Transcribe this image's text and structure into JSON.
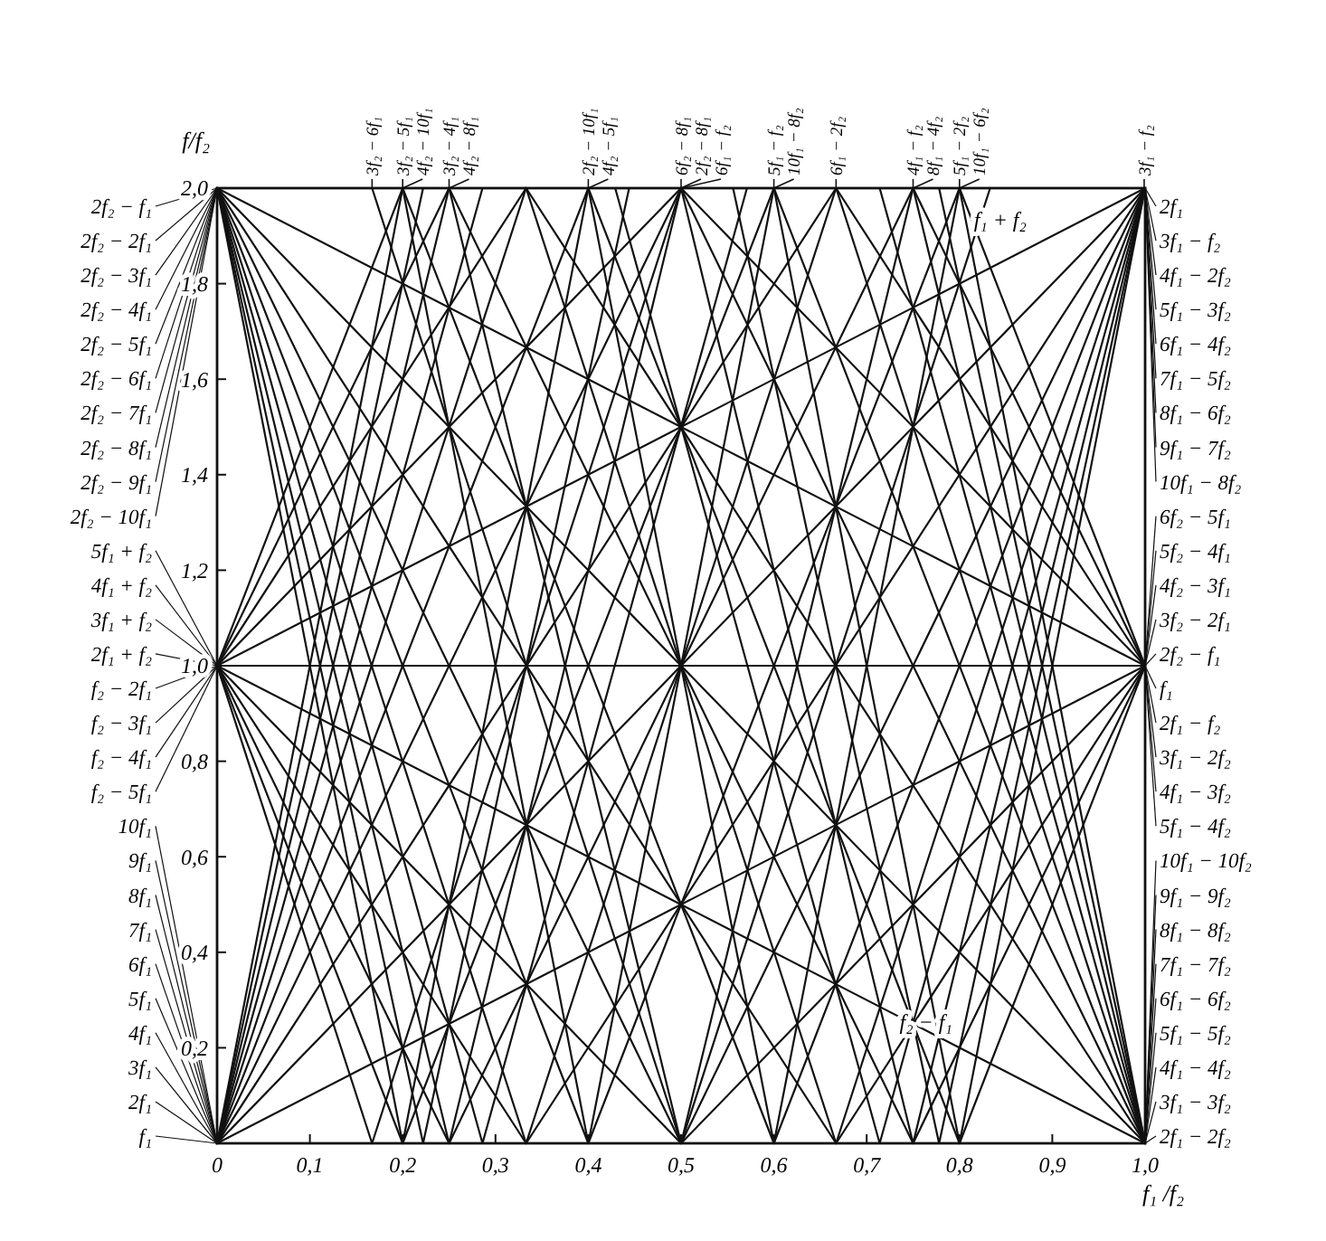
{
  "chart_data": {
    "type": "line",
    "xlabel": "f₁ /f₂",
    "ylabel": "f/f₂",
    "color": "#111111",
    "xlim": [
      0,
      1
    ],
    "ylim": [
      0,
      2
    ],
    "xticks": [
      {
        "value": 0,
        "label": "0"
      },
      {
        "value": 0.1,
        "label": "0,1"
      },
      {
        "value": 0.2,
        "label": "0,2"
      },
      {
        "value": 0.3,
        "label": "0,3"
      },
      {
        "value": 0.4,
        "label": "0,4"
      },
      {
        "value": 0.5,
        "label": "0,5"
      },
      {
        "value": 0.6,
        "label": "0,6"
      },
      {
        "value": 0.7,
        "label": "0,7"
      },
      {
        "value": 0.8,
        "label": "0,8"
      },
      {
        "value": 0.9,
        "label": "0,9"
      },
      {
        "value": 1,
        "label": "1,0"
      }
    ],
    "yticks": [
      {
        "value": 0.2,
        "label": "0,2"
      },
      {
        "value": 0.4,
        "label": "0,4"
      },
      {
        "value": 0.6,
        "label": "0,6"
      },
      {
        "value": 0.8,
        "label": "0,8"
      },
      {
        "value": 1,
        "label": "1,0"
      },
      {
        "value": 1.2,
        "label": "1,2"
      },
      {
        "value": 1.4,
        "label": "1,4"
      },
      {
        "value": 1.6,
        "label": "1,6"
      },
      {
        "value": 1.8,
        "label": "1,8"
      },
      {
        "value": 2,
        "label": "2,0"
      }
    ],
    "series": [
      {
        "x": [
          0,
          1
        ],
        "values": [
          2,
          1
        ]
      },
      {
        "x": [
          0,
          1
        ],
        "values": [
          2,
          0
        ]
      },
      {
        "x": [
          0,
          0.667,
          1
        ],
        "values": [
          2,
          0,
          1
        ]
      },
      {
        "x": [
          0,
          0.5,
          1
        ],
        "values": [
          2,
          0,
          2
        ]
      },
      {
        "x": [
          0,
          0.4,
          0.8
        ],
        "values": [
          2,
          0,
          2
        ]
      },
      {
        "x": [
          0,
          0.333,
          0.667
        ],
        "values": [
          2,
          0,
          2
        ]
      },
      {
        "x": [
          0,
          0.286,
          0.571
        ],
        "values": [
          2,
          0,
          2
        ]
      },
      {
        "x": [
          0,
          0.25,
          0.5
        ],
        "values": [
          2,
          0,
          2
        ]
      },
      {
        "x": [
          0,
          0.222,
          0.444
        ],
        "values": [
          2,
          0,
          2
        ]
      },
      {
        "x": [
          0,
          0.2,
          0.4
        ],
        "values": [
          2,
          0,
          2
        ]
      },
      {
        "x": [
          0,
          1
        ],
        "values": [
          1,
          0
        ]
      },
      {
        "x": [
          0,
          0.5,
          1
        ],
        "values": [
          1,
          0,
          1
        ]
      },
      {
        "x": [
          0,
          0.333,
          1
        ],
        "values": [
          1,
          0,
          2
        ]
      },
      {
        "x": [
          0,
          0.25,
          0.75
        ],
        "values": [
          1,
          0,
          2
        ]
      },
      {
        "x": [
          0,
          0.2,
          0.6
        ],
        "values": [
          1,
          0,
          2
        ]
      },
      {
        "x": [
          0,
          1
        ],
        "values": [
          0,
          1
        ]
      },
      {
        "x": [
          0,
          1
        ],
        "values": [
          0,
          2
        ]
      },
      {
        "x": [
          0,
          0.667
        ],
        "values": [
          0,
          2
        ]
      },
      {
        "x": [
          0,
          0.5
        ],
        "values": [
          0,
          2
        ]
      },
      {
        "x": [
          0,
          0.4
        ],
        "values": [
          0,
          2
        ]
      },
      {
        "x": [
          0,
          0.333
        ],
        "values": [
          0,
          2
        ]
      },
      {
        "x": [
          0,
          0.286
        ],
        "values": [
          0,
          2
        ]
      },
      {
        "x": [
          0,
          0.25
        ],
        "values": [
          0,
          2
        ]
      },
      {
        "x": [
          0,
          0.222
        ],
        "values": [
          0,
          2
        ]
      },
      {
        "x": [
          0,
          0.2
        ],
        "values": [
          0,
          2
        ]
      },
      {
        "x": [
          0,
          1
        ],
        "values": [
          1,
          2
        ]
      },
      {
        "x": [
          0,
          0.5
        ],
        "values": [
          1,
          2
        ]
      },
      {
        "x": [
          0,
          0.333
        ],
        "values": [
          1,
          2
        ]
      },
      {
        "x": [
          0,
          0.25
        ],
        "values": [
          1,
          2
        ]
      },
      {
        "x": [
          0,
          0.2
        ],
        "values": [
          1,
          2
        ]
      },
      {
        "x": [
          0.2,
          0.6,
          1
        ],
        "values": [
          2,
          0,
          2
        ]
      },
      {
        "x": [
          0.333,
          0.667,
          1
        ],
        "values": [
          2,
          0,
          2
        ]
      },
      {
        "x": [
          0.429,
          0.714,
          1
        ],
        "values": [
          2,
          0,
          2
        ]
      },
      {
        "x": [
          0.5,
          0.75,
          1
        ],
        "values": [
          2,
          0,
          2
        ]
      },
      {
        "x": [
          0.556,
          0.778,
          1
        ],
        "values": [
          2,
          0,
          2
        ]
      },
      {
        "x": [
          0.6,
          0.8,
          1
        ],
        "values": [
          2,
          0,
          2
        ]
      },
      {
        "x": [
          0.5,
          1
        ],
        "values": [
          2,
          1
        ]
      },
      {
        "x": [
          0.667,
          1
        ],
        "values": [
          2,
          1
        ]
      },
      {
        "x": [
          0.75,
          1
        ],
        "values": [
          2,
          1
        ]
      },
      {
        "x": [
          0.8,
          1
        ],
        "values": [
          2,
          1
        ]
      },
      {
        "x": [
          0.25,
          0.75,
          1
        ],
        "values": [
          2,
          0,
          1
        ]
      },
      {
        "x": [
          0.4,
          0.8,
          1
        ],
        "values": [
          2,
          0,
          1
        ]
      },
      {
        "x": [
          0.333,
          1
        ],
        "values": [
          2,
          0
        ]
      },
      {
        "x": [
          0.5,
          1
        ],
        "values": [
          2,
          0
        ]
      },
      {
        "x": [
          0.6,
          1
        ],
        "values": [
          2,
          0
        ]
      },
      {
        "x": [
          0.667,
          1
        ],
        "values": [
          2,
          0
        ]
      },
      {
        "x": [
          0.714,
          1
        ],
        "values": [
          2,
          0
        ]
      },
      {
        "x": [
          0.75,
          1
        ],
        "values": [
          2,
          0
        ]
      },
      {
        "x": [
          0.778,
          1
        ],
        "values": [
          2,
          0
        ]
      },
      {
        "x": [
          0.8,
          1
        ],
        "values": [
          2,
          0
        ]
      },
      {
        "x": [
          0.167,
          0.5,
          0.833
        ],
        "values": [
          2,
          0,
          2
        ]
      },
      {
        "x": [
          0.2,
          0.4,
          0.6
        ],
        "values": [
          2,
          0,
          2
        ]
      },
      {
        "x": [
          0.25,
          0.5,
          0.75
        ],
        "values": [
          2,
          0,
          2
        ]
      },
      {
        "x": [
          0,
          0.167,
          0.5
        ],
        "values": [
          1,
          0,
          2
        ]
      },
      {
        "x": [
          0.4,
          0.6,
          0.8
        ],
        "values": [
          2,
          0,
          2
        ]
      },
      {
        "x": [
          0,
          1
        ],
        "values": [
          1,
          1
        ]
      }
    ],
    "annotations": [
      {
        "text": "2f₂ − f₁",
        "x": 0,
        "y": 2
      },
      {
        "text": "2f₂ − 2f₁",
        "x": 0,
        "y": 2
      },
      {
        "text": "2f₂ − 3f₁",
        "x": 0,
        "y": 2
      },
      {
        "text": "2f₂ − 4f₁",
        "x": 0,
        "y": 2
      },
      {
        "text": "2f₂ − 5f₁",
        "x": 0,
        "y": 2
      },
      {
        "text": "2f₂ − 6f₁",
        "x": 0,
        "y": 2
      },
      {
        "text": "2f₂ − 7f₁",
        "x": 0,
        "y": 2
      },
      {
        "text": "2f₂ − 8f₁",
        "x": 0,
        "y": 2
      },
      {
        "text": "2f₂ − 9f₁",
        "x": 0,
        "y": 2
      },
      {
        "text": "2f₂ − 10f₁",
        "x": 0,
        "y": 2
      },
      {
        "text": "5f₁ + f₂",
        "x": 0,
        "y": 1
      },
      {
        "text": "4f₁ + f₂",
        "x": 0,
        "y": 1
      },
      {
        "text": "3f₁ + f₂",
        "x": 0,
        "y": 1
      },
      {
        "text": "2f₁ + f₂",
        "x": 0,
        "y": 1
      },
      {
        "text": "f₂ − 2f₁",
        "x": 0,
        "y": 1
      },
      {
        "text": "f₂ − 3f₁",
        "x": 0,
        "y": 1
      },
      {
        "text": "f₂ − 4f₁",
        "x": 0,
        "y": 1
      },
      {
        "text": "f₂ − 5f₁",
        "x": 0,
        "y": 1
      },
      {
        "text": "10f₁",
        "x": 0,
        "y": 0
      },
      {
        "text": "9f₁",
        "x": 0,
        "y": 0
      },
      {
        "text": "8f₁",
        "x": 0,
        "y": 0
      },
      {
        "text": "7f₁",
        "x": 0,
        "y": 0
      },
      {
        "text": "6f₁",
        "x": 0,
        "y": 0
      },
      {
        "text": "5f₁",
        "x": 0,
        "y": 0
      },
      {
        "text": "4f₁",
        "x": 0,
        "y": 0
      },
      {
        "text": "3f₁",
        "x": 0,
        "y": 0
      },
      {
        "text": "2f₁",
        "x": 0,
        "y": 0
      },
      {
        "text": "f₁",
        "x": 0,
        "y": 0
      },
      {
        "text": "2f₁",
        "x": 1,
        "y": 2
      },
      {
        "text": "3f₁ − f₂",
        "x": 1,
        "y": 2
      },
      {
        "text": "4f₁ − 2f₂",
        "x": 1,
        "y": 2
      },
      {
        "text": "5f₁ − 3f₂",
        "x": 1,
        "y": 2
      },
      {
        "text": "6f₁ − 4f₂",
        "x": 1,
        "y": 2
      },
      {
        "text": "7f₁ − 5f₂",
        "x": 1,
        "y": 2
      },
      {
        "text": "8f₁ − 6f₂",
        "x": 1,
        "y": 2
      },
      {
        "text": "9f₁ − 7f₂",
        "x": 1,
        "y": 2
      },
      {
        "text": "10f₁ − 8f₂",
        "x": 1,
        "y": 2
      },
      {
        "text": "6f₂ − 5f₁",
        "x": 1,
        "y": 1
      },
      {
        "text": "5f₂ − 4f₁",
        "x": 1,
        "y": 1
      },
      {
        "text": "4f₂ − 3f₁",
        "x": 1,
        "y": 1
      },
      {
        "text": "3f₂ − 2f₁",
        "x": 1,
        "y": 1
      },
      {
        "text": "2f₂ − f₁",
        "x": 1,
        "y": 1
      },
      {
        "text": "f₁",
        "x": 1,
        "y": 1
      },
      {
        "text": "2f₁ − f₂",
        "x": 1,
        "y": 1
      },
      {
        "text": "3f₁ − 2f₂",
        "x": 1,
        "y": 1
      },
      {
        "text": "4f₁ − 3f₂",
        "x": 1,
        "y": 1
      },
      {
        "text": "5f₁ − 4f₂",
        "x": 1,
        "y": 1
      },
      {
        "text": "10f₁ − 10f₂",
        "x": 1,
        "y": 0
      },
      {
        "text": "9f₁ − 9f₂",
        "x": 1,
        "y": 0
      },
      {
        "text": "8f₁ − 8f₂",
        "x": 1,
        "y": 0
      },
      {
        "text": "7f₁ − 7f₂",
        "x": 1,
        "y": 0
      },
      {
        "text": "6f₁ − 6f₂",
        "x": 1,
        "y": 0
      },
      {
        "text": "5f₁ − 5f₂",
        "x": 1,
        "y": 0
      },
      {
        "text": "4f₁ − 4f₂",
        "x": 1,
        "y": 0
      },
      {
        "text": "3f₁ − 3f₂",
        "x": 1,
        "y": 0
      },
      {
        "text": "2f₁ − 2f₂",
        "x": 1,
        "y": 0
      },
      {
        "text": "3f₂ − 6f₁",
        "x": 0.167,
        "y": 2
      },
      {
        "text": "3f₂ − 5f₁",
        "x": 0.2,
        "y": 2
      },
      {
        "text": "4f₂ − 10f₁",
        "x": 0.2,
        "y": 2
      },
      {
        "text": "3f₂ − 4f₁",
        "x": 0.25,
        "y": 2
      },
      {
        "text": "4f₂ − 8f₁",
        "x": 0.25,
        "y": 2
      },
      {
        "text": "2f₂ − 10f₁",
        "x": 0.4,
        "y": 2
      },
      {
        "text": "4f₂ − 5f₁",
        "x": 0.4,
        "y": 2
      },
      {
        "text": "6f₂ − 8f₁",
        "x": 0.5,
        "y": 2
      },
      {
        "text": "2f₂ − 8f₁",
        "x": 0.5,
        "y": 2
      },
      {
        "text": "6f₁ − f₂",
        "x": 0.5,
        "y": 2
      },
      {
        "text": "5f₁ − f₂",
        "x": 0.6,
        "y": 2
      },
      {
        "text": "10f₁ − 8f₂",
        "x": 0.6,
        "y": 2
      },
      {
        "text": "6f₁ − 2f₂",
        "x": 0.667,
        "y": 2
      },
      {
        "text": "4f₁ − f₂",
        "x": 0.75,
        "y": 2
      },
      {
        "text": "8f₁ − 4f₂",
        "x": 0.75,
        "y": 2
      },
      {
        "text": "5f₁ − 2f₂",
        "x": 0.8,
        "y": 2
      },
      {
        "text": "10f₁ − 6f₂",
        "x": 0.8,
        "y": 2
      },
      {
        "text": "3f₁ − f₂",
        "x": 0.999,
        "y": 2
      },
      {
        "text": "f₁ + f₂",
        "x": 0.88,
        "y": 1.88
      },
      {
        "text": "f₂ − f₁",
        "x": 0.8,
        "y": 0.2
      }
    ]
  }
}
